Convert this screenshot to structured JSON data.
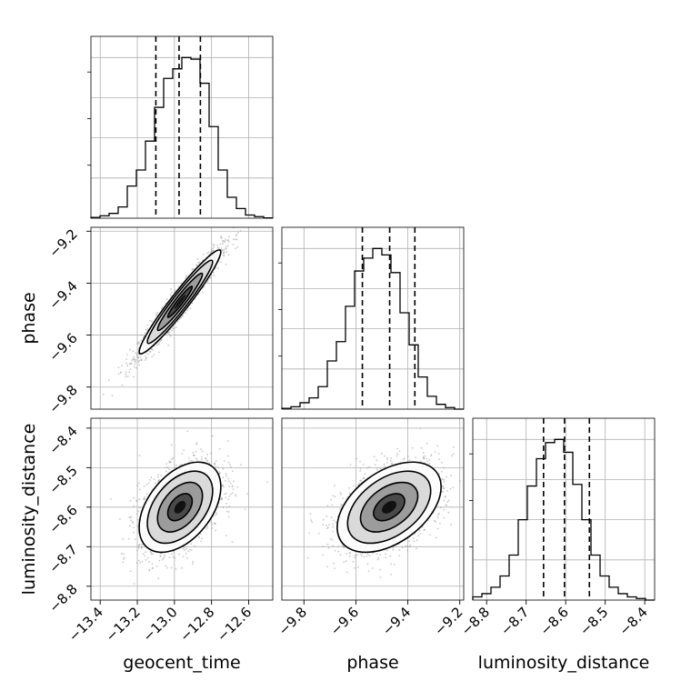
{
  "chart_data": {
    "type": "corner",
    "parameters": [
      "geocent_time",
      "phase",
      "luminosity_distance"
    ],
    "axis_labels": {
      "geocent_time": "geocent_time",
      "phase": "phase",
      "luminosity_distance": "luminosity_distance"
    },
    "ranges": {
      "geocent_time": [
        -13.45,
        -12.47
      ],
      "phase": [
        -9.885,
        -9.185
      ],
      "luminosity_distance": [
        -8.835,
        -8.375
      ]
    },
    "ticks": {
      "geocent_time": [
        -13.4,
        -13.2,
        -13.0,
        -12.8,
        -12.6
      ],
      "phase": [
        -9.8,
        -9.6,
        -9.4,
        -9.2
      ],
      "luminosity_distance": [
        -8.8,
        -8.7,
        -8.6,
        -8.5,
        -8.4
      ]
    },
    "tick_labels": {
      "geocent_time": [
        "−13.4",
        "−13.2",
        "−13.0",
        "−12.8",
        "−12.6"
      ],
      "phase": [
        "−9.8",
        "−9.6",
        "−9.4",
        "−9.2"
      ],
      "luminosity_distance": [
        "−8.8",
        "−8.7",
        "−8.6",
        "−8.5",
        "−8.4"
      ]
    },
    "quantiles": {
      "geocent_time": [
        -13.1,
        -12.975,
        -12.86
      ],
      "phase": [
        -9.575,
        -9.47,
        -9.373
      ],
      "luminosity_distance": [
        -8.656,
        -8.603,
        -8.54
      ]
    },
    "histograms": {
      "geocent_time": {
        "edges_start": -13.45,
        "bin_width": 0.049,
        "counts": [
          0.005,
          0.015,
          0.03,
          0.07,
          0.2,
          0.3,
          0.48,
          0.69,
          0.87,
          0.93,
          1.0,
          0.99,
          0.84,
          0.57,
          0.3,
          0.13,
          0.06,
          0.02,
          0.01,
          0.002
        ]
      },
      "phase": {
        "edges_start": -9.885,
        "bin_width": 0.035,
        "counts": [
          0.005,
          0.015,
          0.04,
          0.07,
          0.14,
          0.3,
          0.42,
          0.64,
          0.86,
          0.94,
          1.0,
          0.96,
          0.85,
          0.6,
          0.4,
          0.2,
          0.08,
          0.03,
          0.01,
          0.0
        ]
      },
      "luminosity_distance": {
        "edges_start": -8.835,
        "bin_width": 0.023,
        "counts": [
          0.02,
          0.04,
          0.08,
          0.15,
          0.28,
          0.5,
          0.71,
          0.88,
          0.98,
          1.0,
          0.92,
          0.72,
          0.5,
          0.28,
          0.15,
          0.08,
          0.04,
          0.02,
          0.01,
          0.0
        ]
      }
    },
    "posterior": {
      "geocent_time": {
        "mean": -12.97,
        "sd": 0.11
      },
      "phase": {
        "mean": -9.472,
        "sd": 0.1
      },
      "luminosity_distance": {
        "mean": -8.6,
        "sd": 0.057
      },
      "correlations": {
        "geocent_time|phase": 0.96,
        "geocent_time|luminosity_distance": 0.45,
        "phase|luminosity_distance": 0.45
      }
    },
    "grid": true,
    "colors": {
      "line": "#000000",
      "points": "#9a9a9a",
      "grid": "#b0b0b0",
      "quantile": "#000000"
    }
  }
}
